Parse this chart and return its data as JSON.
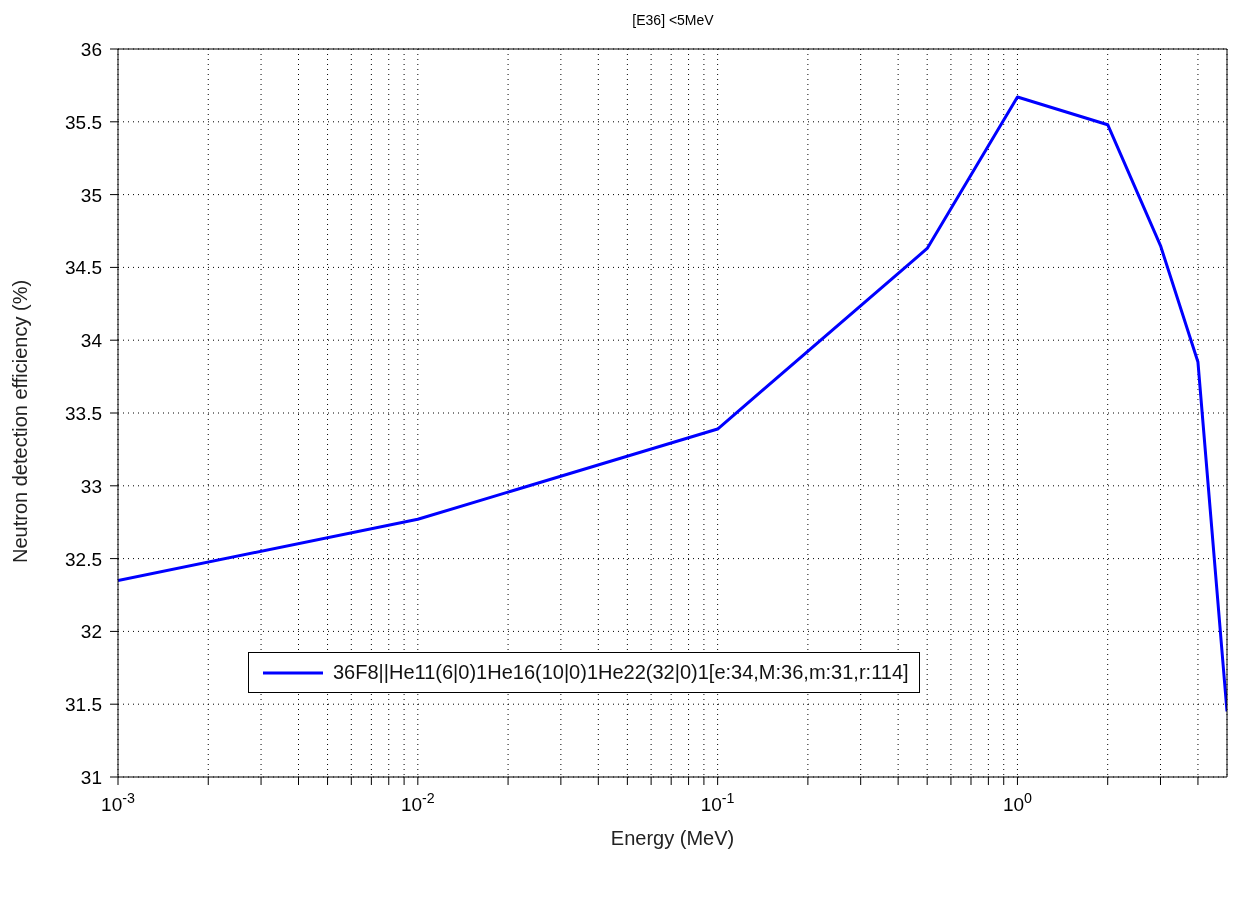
{
  "chart_data": {
    "type": "line",
    "title": "[E36] <5MeV",
    "xlabel": "Energy (MeV)",
    "ylabel": "Neutron detection efficiency (%)",
    "x": [
      0.001,
      0.01,
      0.1,
      0.5,
      1,
      2,
      3,
      4,
      5
    ],
    "series": [
      {
        "name": "36F8||He11(6|0)1He16(10|0)1He22(32|0)1[e:34,M:36,m:31,r:114]",
        "color": "#0000ff",
        "values": [
          32.35,
          32.77,
          33.39,
          34.63,
          35.67,
          35.48,
          34.65,
          33.85,
          31.45
        ]
      }
    ],
    "log": "x",
    "xlim": [
      0.001,
      5
    ],
    "xticks": [
      {
        "value": 0.001,
        "label": "10$^{-3}$"
      },
      {
        "value": 0.002,
        "label": null
      },
      {
        "value": 0.003,
        "label": null
      },
      {
        "value": 0.004,
        "label": null
      },
      {
        "value": 0.005,
        "label": null
      },
      {
        "value": 0.006,
        "label": null
      },
      {
        "value": 0.007,
        "label": null
      },
      {
        "value": 0.008,
        "label": null
      },
      {
        "value": 0.009,
        "label": null
      },
      {
        "value": 0.01,
        "label": "10$^{-2}$"
      },
      {
        "value": 0.02,
        "label": null
      },
      {
        "value": 0.03,
        "label": null
      },
      {
        "value": 0.04,
        "label": null
      },
      {
        "value": 0.05,
        "label": null
      },
      {
        "value": 0.06,
        "label": null
      },
      {
        "value": 0.07,
        "label": null
      },
      {
        "value": 0.08,
        "label": null
      },
      {
        "value": 0.09,
        "label": null
      },
      {
        "value": 0.1,
        "label": "10$^{-1}$"
      },
      {
        "value": 0.2,
        "label": null
      },
      {
        "value": 0.3,
        "label": null
      },
      {
        "value": 0.4,
        "label": null
      },
      {
        "value": 0.5,
        "label": null
      },
      {
        "value": 0.6,
        "label": null
      },
      {
        "value": 0.7,
        "label": null
      },
      {
        "value": 0.8,
        "label": null
      },
      {
        "value": 0.9,
        "label": null
      },
      {
        "value": 1,
        "label": "10$^{0}$"
      },
      {
        "value": 2,
        "label": null
      },
      {
        "value": 3,
        "label": null
      },
      {
        "value": 4,
        "label": null
      }
    ],
    "ylim": [
      31,
      36
    ],
    "yticks": [
      31,
      31.5,
      32,
      32.5,
      33,
      33.5,
      34,
      34.5,
      35,
      35.5,
      36
    ],
    "grid": true,
    "legend": "bottom",
    "line_style": "solid"
  }
}
